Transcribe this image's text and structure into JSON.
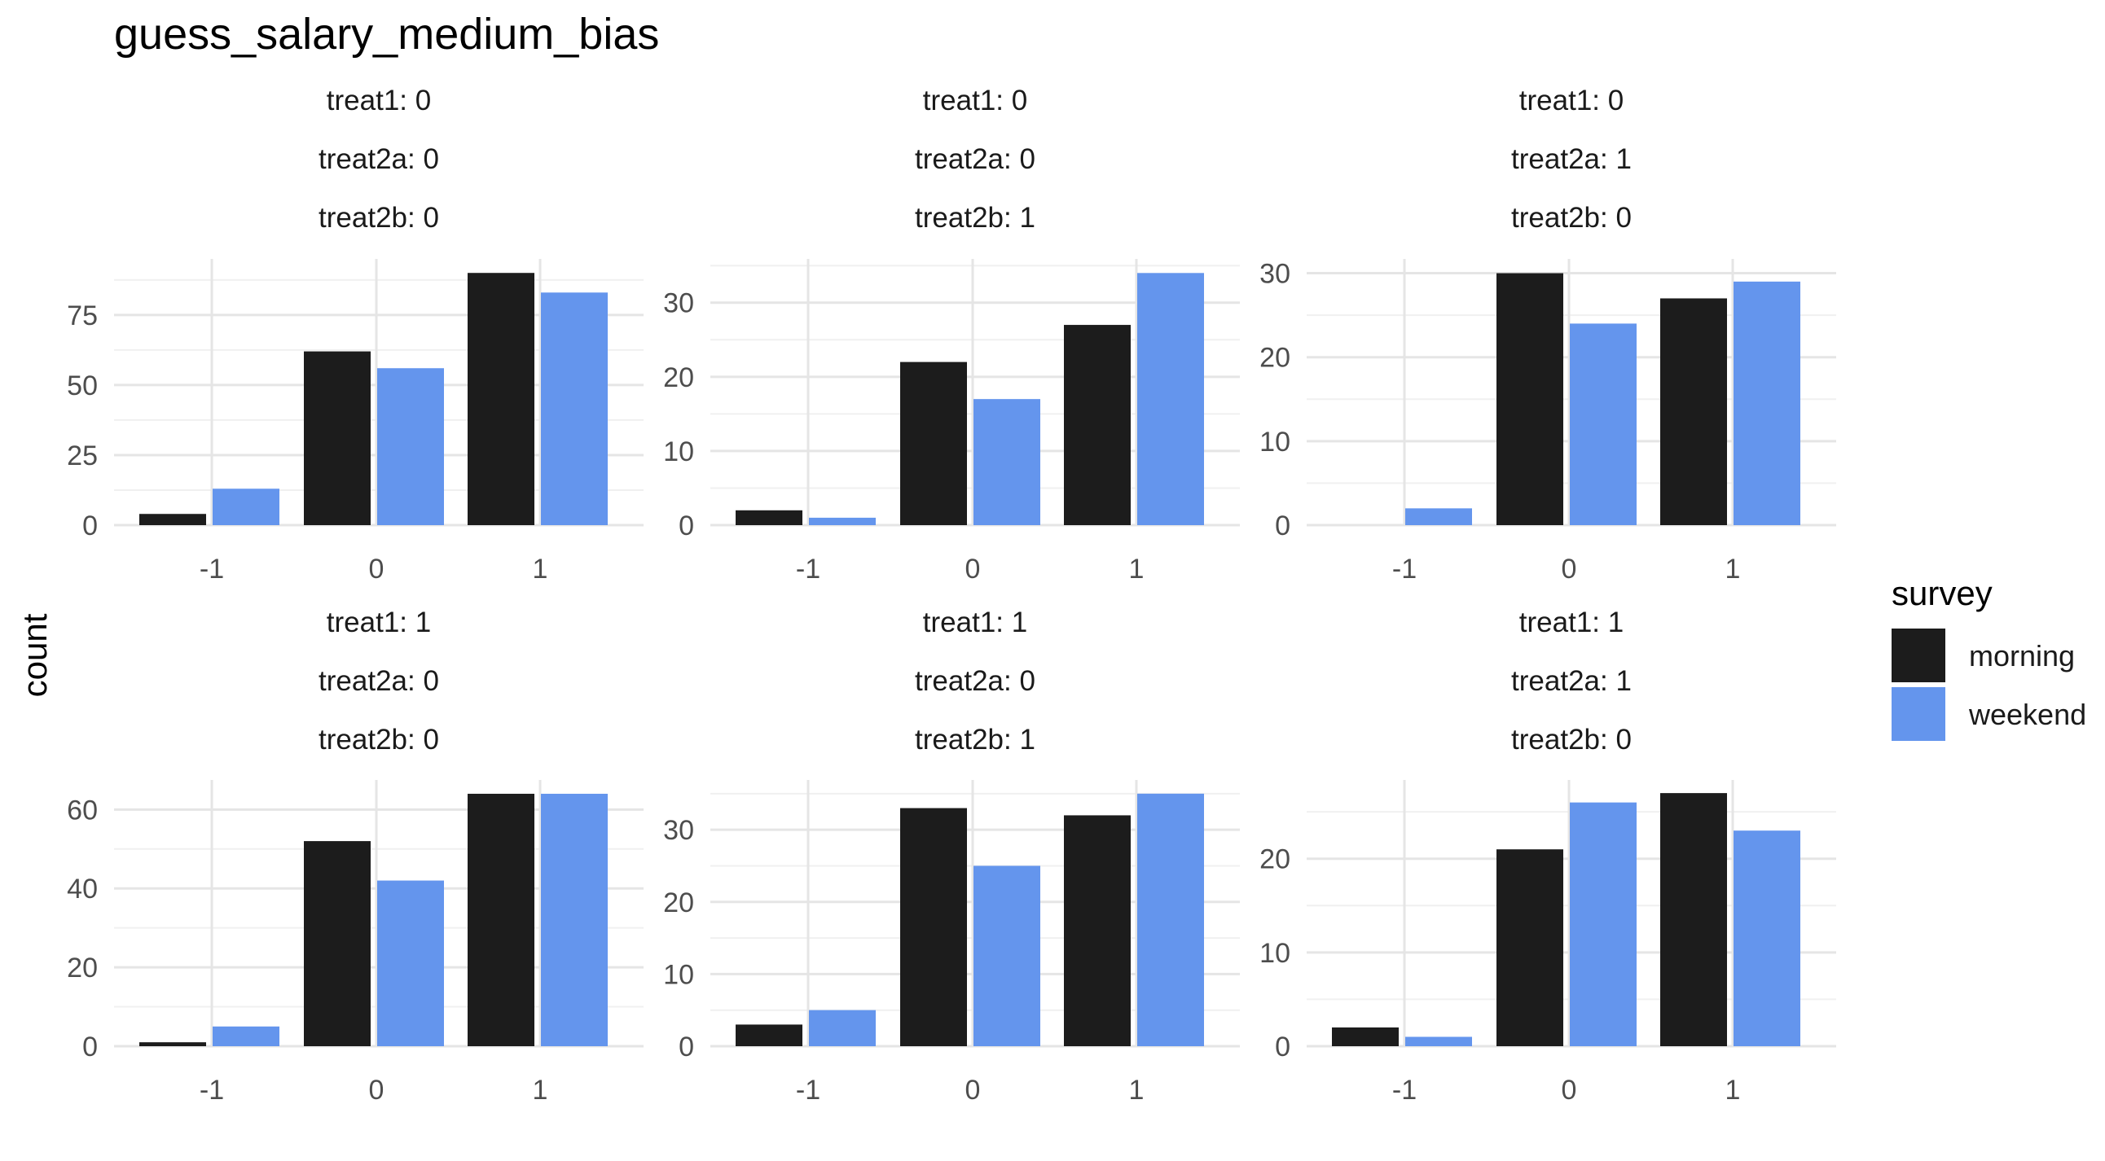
{
  "chart_data": {
    "type": "bar",
    "title": "guess_salary_medium_bias",
    "ylabel": "count",
    "xlabel": "",
    "categories": [
      "-1",
      "0",
      "1"
    ],
    "legend": {
      "title": "survey",
      "position": "right",
      "entries": [
        {
          "name": "morning",
          "color": "#1c1c1c"
        },
        {
          "name": "weekend",
          "color": "#6495ed"
        }
      ]
    },
    "grid": true,
    "facets": [
      {
        "strip": [
          "treat1: 0",
          "treat2a: 0",
          "treat2b: 0"
        ],
        "ylim": [
          0,
          95
        ],
        "yticks": [
          0,
          25,
          50,
          75
        ],
        "series": [
          {
            "name": "morning",
            "values": [
              4,
              62,
              90
            ]
          },
          {
            "name": "weekend",
            "values": [
              13,
              56,
              83
            ]
          }
        ]
      },
      {
        "strip": [
          "treat1: 0",
          "treat2a: 0",
          "treat2b: 1"
        ],
        "ylim": [
          0,
          35.9
        ],
        "yticks": [
          0,
          10,
          20,
          30
        ],
        "series": [
          {
            "name": "morning",
            "values": [
              2,
              22,
              27
            ]
          },
          {
            "name": "weekend",
            "values": [
              1,
              17,
              34
            ]
          }
        ]
      },
      {
        "strip": [
          "treat1: 0",
          "treat2a: 1",
          "treat2b: 0"
        ],
        "ylim": [
          0,
          31.7
        ],
        "yticks": [
          0,
          10,
          20,
          30
        ],
        "series": [
          {
            "name": "morning",
            "values": [
              0,
              30,
              27
            ]
          },
          {
            "name": "weekend",
            "values": [
              2,
              24,
              29
            ]
          }
        ]
      },
      {
        "strip": [
          "treat1: 1",
          "treat2a: 0",
          "treat2b: 0"
        ],
        "ylim": [
          0,
          67.5
        ],
        "yticks": [
          0,
          20,
          40,
          60
        ],
        "series": [
          {
            "name": "morning",
            "values": [
              1,
              52,
              64
            ]
          },
          {
            "name": "weekend",
            "values": [
              5,
              42,
              64
            ]
          }
        ]
      },
      {
        "strip": [
          "treat1: 1",
          "treat2a: 0",
          "treat2b: 1"
        ],
        "ylim": [
          0,
          36.9
        ],
        "yticks": [
          0,
          10,
          20,
          30
        ],
        "series": [
          {
            "name": "morning",
            "values": [
              3,
              33,
              32
            ]
          },
          {
            "name": "weekend",
            "values": [
              5,
              25,
              35
            ]
          }
        ]
      },
      {
        "strip": [
          "treat1: 1",
          "treat2a: 1",
          "treat2b: 0"
        ],
        "ylim": [
          0,
          28.4
        ],
        "yticks": [
          0,
          10,
          20
        ],
        "series": [
          {
            "name": "morning",
            "values": [
              2,
              21,
              27
            ]
          },
          {
            "name": "weekend",
            "values": [
              1,
              26,
              23
            ]
          }
        ]
      }
    ]
  }
}
